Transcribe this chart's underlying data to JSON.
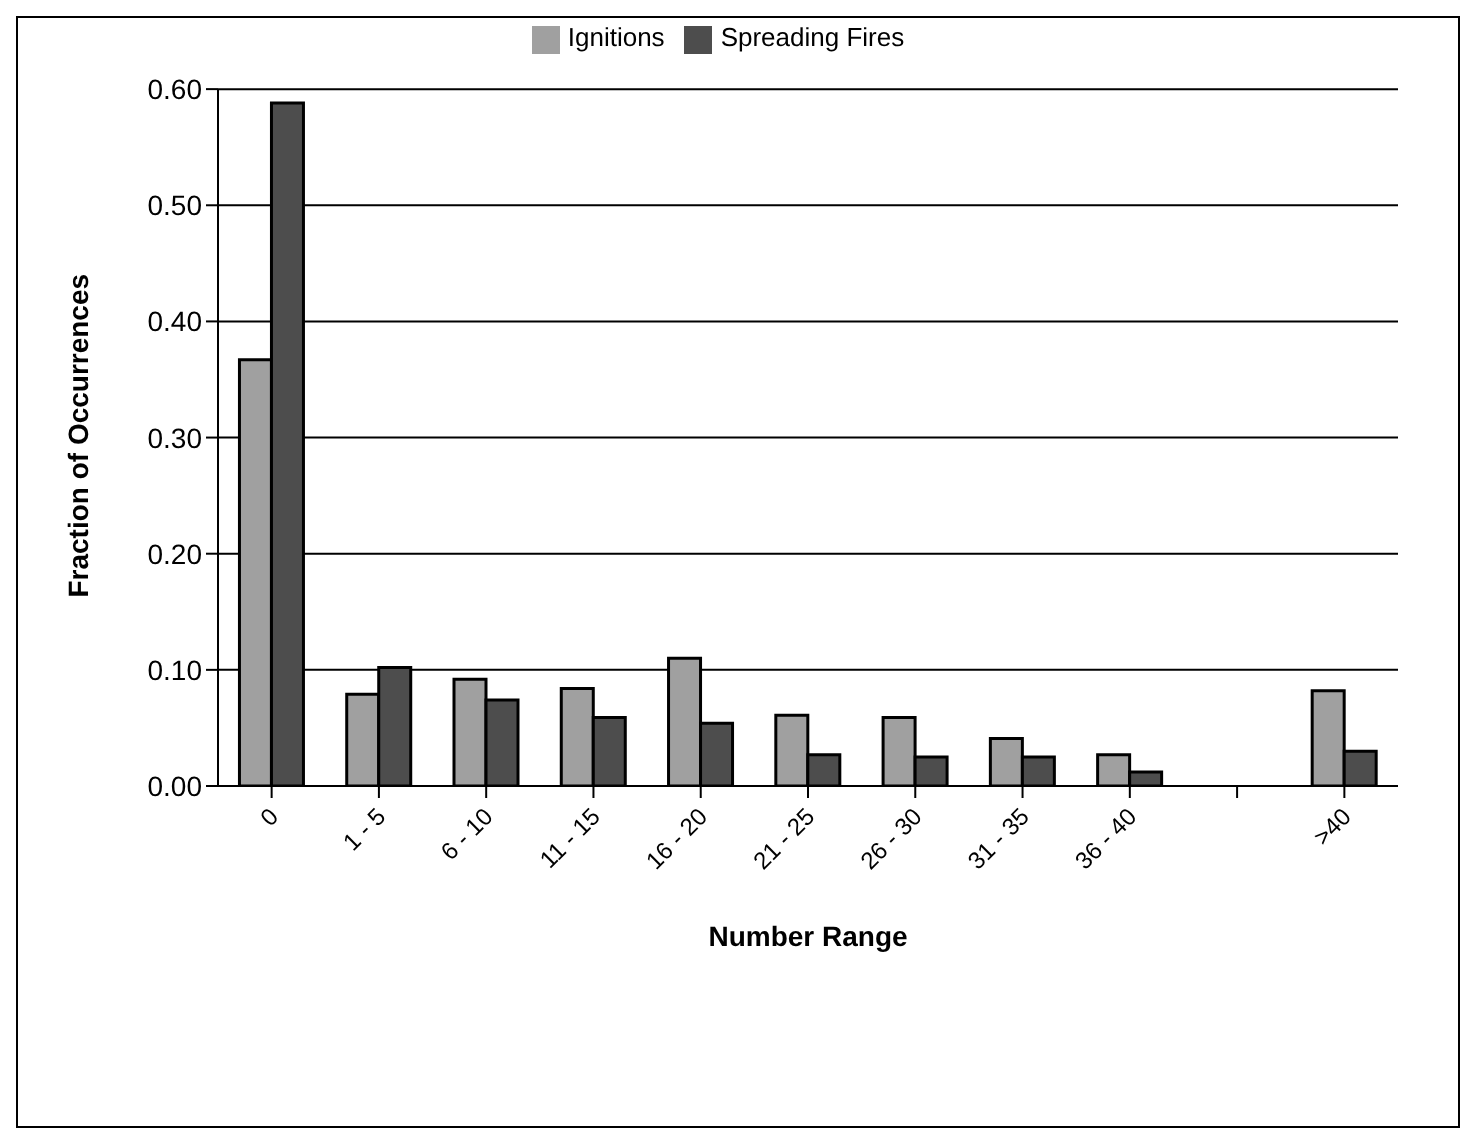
{
  "chart_data": {
    "type": "bar",
    "xlabel": "Number Range",
    "ylabel": "Fraction of Occurrences",
    "categories": [
      "0",
      "1 - 5",
      "6 - 10",
      "11 - 15",
      "16 - 20",
      "21 - 25",
      "26 - 30",
      "31 - 35",
      "36 - 40",
      null,
      ">40"
    ],
    "series": [
      {
        "name": "Ignitions",
        "color": "#a0a0a0",
        "values": [
          0.367,
          0.079,
          0.092,
          0.084,
          0.11,
          0.061,
          0.059,
          0.041,
          0.027,
          null,
          0.082
        ]
      },
      {
        "name": "Spreading Fires",
        "color": "#4d4d4d",
        "values": [
          0.588,
          0.102,
          0.074,
          0.059,
          0.054,
          0.027,
          0.025,
          0.025,
          0.012,
          null,
          0.03
        ]
      }
    ],
    "ylim": [
      0,
      0.6
    ],
    "yticks": [
      {
        "value": 0,
        "label": "0.00"
      },
      {
        "value": 0.1,
        "label": "0.10"
      },
      {
        "value": 0.2,
        "label": "0.20"
      },
      {
        "value": 0.3,
        "label": "0.30"
      },
      {
        "value": 0.4,
        "label": "0.40"
      },
      {
        "value": 0.5,
        "label": "0.50"
      },
      {
        "value": 0.6,
        "label": "0.60"
      }
    ],
    "grid": "y",
    "legend": "top"
  }
}
